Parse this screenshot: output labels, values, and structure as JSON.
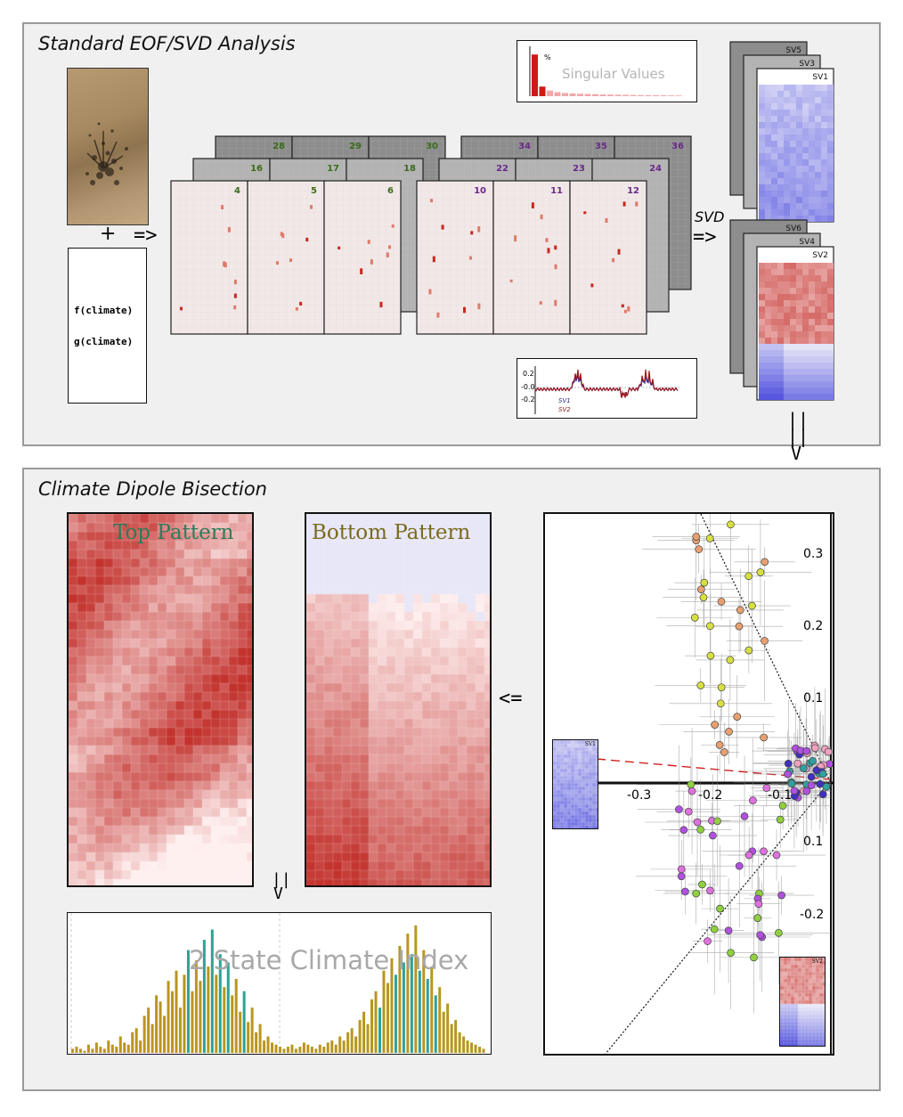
{
  "top_section": {
    "title": "Standard EOF/SVD Analysis",
    "plus": "+",
    "arrow1": "=>",
    "func1": "f(climate)",
    "func2": "g(climate)",
    "svd_label": "SVD",
    "arrow_svd": "=>",
    "stack_a_labels": [
      "28",
      "29",
      "30",
      "16",
      "17",
      "18",
      "4",
      "5",
      "6"
    ],
    "stack_b_labels": [
      "34",
      "35",
      "36",
      "22",
      "23",
      "24",
      "10",
      "11",
      "12"
    ],
    "sv_top_labels": [
      "SV5",
      "SV3",
      "SV1"
    ],
    "sv_bottom_labels": [
      "SV6",
      "SV4",
      "SV2"
    ],
    "singular_values": {
      "title": "Singular Values",
      "unit": "%",
      "values": [
        52,
        12,
        7,
        5,
        4,
        3.5,
        3,
        2.8,
        2.5,
        2.2,
        2,
        1.8,
        1.6,
        1.5,
        1.4,
        1.3,
        1.2,
        1.1,
        1,
        0.9
      ]
    },
    "ts_plot": {
      "ticks": [
        "0.2",
        "-0.0",
        "-0.2"
      ],
      "legend": [
        "SV1",
        "SV2"
      ]
    }
  },
  "link_arrow": "||\n||\nV",
  "bottom_section": {
    "title": "Climate Dipole Bisection",
    "top_pattern_label": "Top Pattern",
    "bottom_pattern_label": "Bottom Pattern",
    "arrow_left": "<=",
    "arrow_down": "||\nV",
    "index_title": "2 State Climate Index",
    "scatter": {
      "x_ticks": [
        "-0.3",
        "-0.2",
        "-0.1"
      ],
      "y_ticks": [
        "0.3",
        "0.2",
        "0.1",
        "0.1",
        "-0.2"
      ],
      "inset_sv1": "SV1",
      "inset_sv2": "SV2"
    }
  },
  "colors": {
    "panel_bg": "#f0f0f0",
    "red": "#c8281e",
    "blue": "#3030c8",
    "teal": "#2aa394",
    "olive": "#b8961e",
    "top_label": "#2d7a5a",
    "bottom_label": "#7a6a1e"
  },
  "chart_data": [
    {
      "type": "bar",
      "title": "Singular Values",
      "values": [
        52,
        12,
        7,
        5,
        4,
        3.5,
        3,
        2.8,
        2.5,
        2.2,
        2,
        1.8,
        1.6,
        1.5,
        1.4,
        1.3,
        1.2,
        1.1,
        1,
        0.9
      ]
    },
    {
      "type": "bar",
      "title": "2 State Climate Index",
      "values": [
        2,
        3,
        2,
        1,
        4,
        2,
        5,
        3,
        2,
        6,
        4,
        3,
        8,
        5,
        4,
        10,
        12,
        6,
        18,
        22,
        14,
        28,
        25,
        18,
        35,
        30,
        40,
        22,
        38,
        50,
        30,
        45,
        35,
        55,
        42,
        60,
        38,
        48,
        32,
        44,
        28,
        36,
        20,
        30,
        15,
        22,
        10,
        14,
        6,
        8,
        5,
        4,
        3,
        2,
        3,
        4,
        2,
        3,
        5,
        4,
        3,
        2,
        4,
        3,
        5,
        6,
        4,
        8,
        6,
        10,
        12,
        8,
        16,
        20,
        14,
        26,
        30,
        22,
        40,
        34,
        46,
        38,
        52,
        44,
        58,
        48,
        62,
        40,
        50,
        36,
        42,
        28,
        32,
        20,
        24,
        14,
        16,
        10,
        8,
        6,
        5,
        4,
        3,
        2
      ],
      "teal_indices": [
        29,
        33,
        35,
        37,
        39,
        43,
        77,
        81,
        83,
        85,
        87,
        89,
        91
      ]
    }
  ]
}
